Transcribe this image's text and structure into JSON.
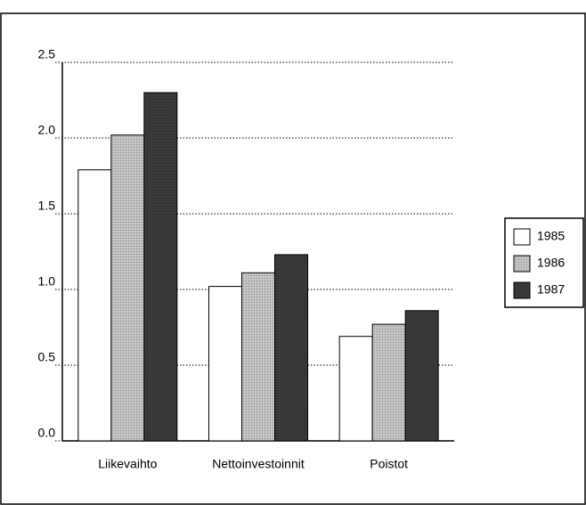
{
  "chart_data": {
    "type": "bar",
    "categories": [
      "Liikevaihto",
      "Nettoinvestoinnit",
      "Poistot"
    ],
    "series": [
      {
        "name": "1985",
        "color": "#ffffff",
        "values": [
          1.79,
          1.02,
          0.69
        ]
      },
      {
        "name": "1986",
        "color": "#c4c4c4",
        "values": [
          2.02,
          1.11,
          0.77
        ]
      },
      {
        "name": "1987",
        "color": "#3a3a3a",
        "values": [
          2.3,
          1.23,
          0.86
        ]
      }
    ],
    "ylim": [
      0,
      2.5
    ],
    "yticks": [
      {
        "value": 0,
        "label": "0.0"
      },
      0.5,
      {
        "value": 1,
        "label": "1.0"
      },
      1.5,
      {
        "value": 2,
        "label": "2.0"
      },
      2.5
    ],
    "grid": true,
    "legend": "right"
  }
}
